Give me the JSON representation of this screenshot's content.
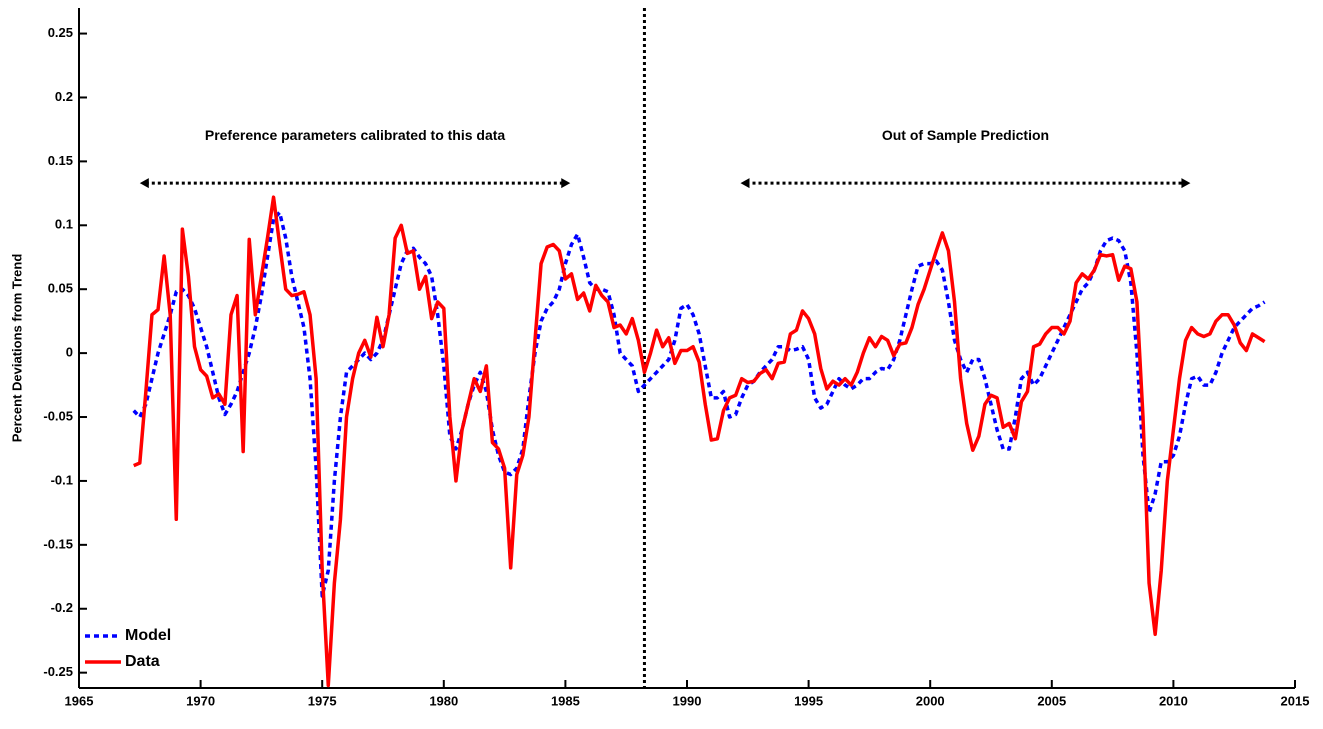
{
  "chart_data": {
    "type": "line",
    "ylabel": "Percent Deviations from Trend",
    "xlim": [
      1965,
      2015
    ],
    "ylim": [
      -0.262,
      0.27
    ],
    "xticks": [
      1965,
      1970,
      1975,
      1980,
      1985,
      1990,
      1995,
      2000,
      2005,
      2010,
      2015
    ],
    "yticks": [
      -0.25,
      -0.2,
      -0.15,
      -0.1,
      -0.05,
      0,
      0.05,
      0.1,
      0.15,
      0.2,
      0.25
    ],
    "grid": false,
    "legend": "lower left",
    "vline": 1988.25,
    "annotations": [
      {
        "text": "Preference parameters calibrated to this data",
        "x": [
          1967.5,
          1985.2
        ],
        "y": 0.133
      },
      {
        "text": "Out of Sample Prediction",
        "x": [
          1992.2,
          2010.7
        ],
        "y": 0.133
      }
    ],
    "x": [
      1967.25,
      1967.5,
      1967.75,
      1968,
      1968.25,
      1968.5,
      1968.75,
      1969,
      1969.25,
      1969.5,
      1969.75,
      1970,
      1970.25,
      1970.5,
      1970.75,
      1971,
      1971.25,
      1971.5,
      1971.75,
      1972,
      1972.25,
      1972.5,
      1972.75,
      1973,
      1973.25,
      1973.5,
      1973.75,
      1974,
      1974.25,
      1974.5,
      1974.75,
      1975,
      1975.25,
      1975.5,
      1975.75,
      1976,
      1976.25,
      1976.5,
      1976.75,
      1977,
      1977.25,
      1977.5,
      1977.75,
      1978,
      1978.25,
      1978.5,
      1978.75,
      1979,
      1979.25,
      1979.5,
      1979.75,
      1980,
      1980.25,
      1980.5,
      1980.75,
      1981,
      1981.25,
      1981.5,
      1981.75,
      1982,
      1982.25,
      1982.5,
      1982.75,
      1983,
      1983.25,
      1983.5,
      1983.75,
      1984,
      1984.25,
      1984.5,
      1984.75,
      1985,
      1985.25,
      1985.5,
      1985.75,
      1986,
      1986.25,
      1986.5,
      1986.75,
      1987,
      1987.25,
      1987.5,
      1987.75,
      1988,
      1988.25,
      1988.5,
      1988.75,
      1989,
      1989.25,
      1989.5,
      1989.75,
      1990,
      1990.25,
      1990.5,
      1990.75,
      1991,
      1991.25,
      1991.5,
      1991.75,
      1992,
      1992.25,
      1992.5,
      1992.75,
      1993,
      1993.25,
      1993.5,
      1993.75,
      1994,
      1994.25,
      1994.5,
      1994.75,
      1995,
      1995.25,
      1995.5,
      1995.75,
      1996,
      1996.25,
      1996.5,
      1996.75,
      1997,
      1997.25,
      1997.5,
      1997.75,
      1998,
      1998.25,
      1998.5,
      1998.75,
      1999,
      1999.25,
      1999.5,
      1999.75,
      2000,
      2000.25,
      2000.5,
      2000.75,
      2001,
      2001.25,
      2001.5,
      2001.75,
      2002,
      2002.25,
      2002.5,
      2002.75,
      2003,
      2003.25,
      2003.5,
      2003.75,
      2004,
      2004.25,
      2004.5,
      2004.75,
      2005,
      2005.25,
      2005.5,
      2005.75,
      2006,
      2006.25,
      2006.5,
      2006.75,
      2007,
      2007.25,
      2007.5,
      2007.75,
      2008,
      2008.25,
      2008.5,
      2008.75,
      2009,
      2009.25,
      2009.5,
      2009.75,
      2010,
      2010.25,
      2010.5,
      2010.75,
      2011,
      2011.25,
      2011.5,
      2011.75,
      2012,
      2012.25,
      2012.5,
      2012.75,
      2013,
      2013.25,
      2013.5,
      2013.75
    ],
    "series": [
      {
        "name": "Model",
        "color": "#0000ff",
        "dash": true,
        "values": [
          -0.045,
          -0.05,
          -0.04,
          -0.02,
          0.0,
          0.015,
          0.03,
          0.048,
          0.05,
          0.045,
          0.035,
          0.02,
          0.005,
          -0.015,
          -0.035,
          -0.048,
          -0.04,
          -0.03,
          -0.015,
          0.0,
          0.02,
          0.045,
          0.075,
          0.105,
          0.11,
          0.09,
          0.06,
          0.04,
          0.02,
          -0.02,
          -0.09,
          -0.19,
          -0.17,
          -0.1,
          -0.05,
          -0.015,
          -0.01,
          -0.005,
          0.0,
          -0.005,
          0.0,
          0.01,
          0.03,
          0.05,
          0.07,
          0.08,
          0.082,
          0.075,
          0.07,
          0.06,
          0.03,
          -0.01,
          -0.065,
          -0.075,
          -0.06,
          -0.04,
          -0.025,
          -0.015,
          -0.03,
          -0.06,
          -0.08,
          -0.093,
          -0.095,
          -0.09,
          -0.075,
          -0.035,
          0.0,
          0.025,
          0.035,
          0.04,
          0.05,
          0.07,
          0.085,
          0.093,
          0.075,
          0.055,
          0.05,
          0.05,
          0.048,
          0.03,
          0.0,
          -0.005,
          -0.01,
          -0.03,
          -0.025,
          -0.02,
          -0.015,
          -0.01,
          -0.005,
          0.01,
          0.035,
          0.038,
          0.03,
          0.015,
          -0.01,
          -0.035,
          -0.035,
          -0.03,
          -0.05,
          -0.048,
          -0.035,
          -0.025,
          -0.022,
          -0.015,
          -0.01,
          -0.005,
          0.005,
          0.005,
          0.002,
          0.003,
          0.005,
          -0.005,
          -0.035,
          -0.043,
          -0.04,
          -0.03,
          -0.02,
          -0.025,
          -0.028,
          -0.025,
          -0.02,
          -0.02,
          -0.015,
          -0.012,
          -0.013,
          -0.005,
          0.01,
          0.03,
          0.05,
          0.068,
          0.07,
          0.07,
          0.072,
          0.065,
          0.04,
          0.01,
          -0.005,
          -0.015,
          -0.005,
          -0.005,
          -0.02,
          -0.04,
          -0.06,
          -0.075,
          -0.075,
          -0.05,
          -0.02,
          -0.015,
          -0.025,
          -0.02,
          -0.01,
          0.0,
          0.01,
          0.02,
          0.03,
          0.04,
          0.05,
          0.055,
          0.065,
          0.08,
          0.088,
          0.09,
          0.088,
          0.08,
          0.055,
          0.0,
          -0.08,
          -0.125,
          -0.11,
          -0.085,
          -0.085,
          -0.08,
          -0.065,
          -0.04,
          -0.02,
          -0.018,
          -0.025,
          -0.025,
          -0.015,
          0.0,
          0.01,
          0.02,
          0.025,
          0.03,
          0.035,
          0.037,
          0.04
        ]
      },
      {
        "name": "Data",
        "color": "#ff0000",
        "dash": false,
        "values": [
          -0.088,
          -0.086,
          -0.03,
          0.03,
          0.034,
          0.076,
          0.03,
          -0.13,
          0.097,
          0.06,
          0.005,
          -0.013,
          -0.018,
          -0.035,
          -0.032,
          -0.04,
          0.03,
          0.045,
          -0.077,
          0.089,
          0.03,
          0.06,
          0.09,
          0.122,
          0.085,
          0.05,
          0.045,
          0.046,
          0.048,
          0.03,
          -0.02,
          -0.17,
          -0.26,
          -0.18,
          -0.13,
          -0.05,
          -0.02,
          0.0,
          0.01,
          -0.003,
          0.028,
          0.005,
          0.03,
          0.09,
          0.1,
          0.078,
          0.08,
          0.05,
          0.06,
          0.027,
          0.04,
          0.035,
          -0.05,
          -0.1,
          -0.06,
          -0.04,
          -0.02,
          -0.03,
          -0.01,
          -0.07,
          -0.075,
          -0.09,
          -0.168,
          -0.095,
          -0.08,
          -0.05,
          0.01,
          0.07,
          0.083,
          0.085,
          0.08,
          0.058,
          0.062,
          0.042,
          0.047,
          0.033,
          0.053,
          0.045,
          0.04,
          0.02,
          0.022,
          0.015,
          0.027,
          0.01,
          -0.015,
          0.0,
          0.018,
          0.005,
          0.012,
          -0.008,
          0.002,
          0.002,
          0.005,
          -0.007,
          -0.04,
          -0.068,
          -0.067,
          -0.045,
          -0.035,
          -0.033,
          -0.02,
          -0.023,
          -0.022,
          -0.016,
          -0.013,
          -0.02,
          -0.008,
          -0.007,
          0.015,
          0.018,
          0.033,
          0.027,
          0.015,
          -0.012,
          -0.028,
          -0.022,
          -0.025,
          -0.02,
          -0.025,
          -0.015,
          0.0,
          0.012,
          0.005,
          0.013,
          0.01,
          -0.002,
          0.007,
          0.008,
          0.02,
          0.038,
          0.05,
          0.065,
          0.08,
          0.094,
          0.08,
          0.04,
          -0.02,
          -0.055,
          -0.076,
          -0.065,
          -0.04,
          -0.033,
          -0.035,
          -0.058,
          -0.055,
          -0.067,
          -0.038,
          -0.03,
          0.005,
          0.007,
          0.015,
          0.02,
          0.02,
          0.015,
          0.025,
          0.055,
          0.062,
          0.058,
          0.065,
          0.077,
          0.076,
          0.077,
          0.057,
          0.068,
          0.066,
          0.04,
          -0.05,
          -0.18,
          -0.22,
          -0.17,
          -0.1,
          -0.06,
          -0.02,
          0.01,
          0.02,
          0.015,
          0.013,
          0.015,
          0.025,
          0.03,
          0.03,
          0.022,
          0.008,
          0.002,
          0.015,
          0.012,
          0.009
        ]
      }
    ]
  }
}
